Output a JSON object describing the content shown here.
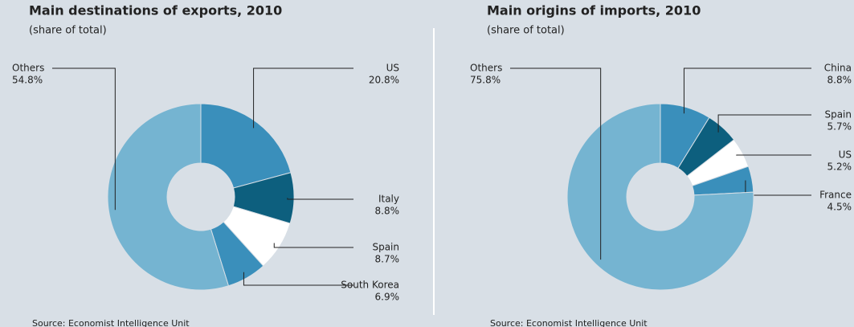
{
  "chart_data": [
    {
      "type": "donut",
      "title": "Main destinations of exports, 2010",
      "subtitle": "(share of total)",
      "categories": [
        "US",
        "Italy",
        "Spain",
        "South Korea",
        "Others"
      ],
      "values": [
        20.8,
        8.8,
        8.7,
        6.9,
        54.8
      ],
      "value_labels": [
        "20.8%",
        "8.8%",
        "8.7%",
        "6.9%",
        "54.8%"
      ],
      "colors": [
        "#3a8fbb",
        "#0d5f7e",
        "#ffffff",
        "#3a8fbb",
        "#75b4d1"
      ],
      "source": "Source: Economist Intelligence Unit"
    },
    {
      "type": "donut",
      "title": "Main origins of imports, 2010",
      "subtitle": "(share of total)",
      "categories": [
        "China",
        "Spain",
        "US",
        "France",
        "Others"
      ],
      "values": [
        8.8,
        5.7,
        5.2,
        4.5,
        75.8
      ],
      "value_labels": [
        "8.8%",
        "5.7%",
        "5.2%",
        "4.5%",
        "75.8%"
      ],
      "colors": [
        "#3a8fbb",
        "#0d5f7e",
        "#ffffff",
        "#3a8fbb",
        "#75b4d1"
      ],
      "source": "Source: Economist Intelligence Unit"
    }
  ]
}
